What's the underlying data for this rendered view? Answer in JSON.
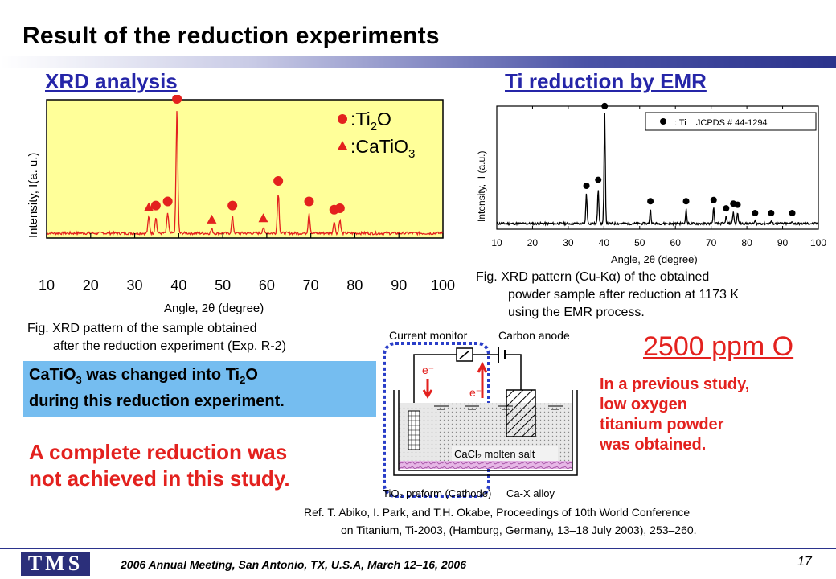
{
  "slide": {
    "title": "Result of the reduction experiments",
    "xrd_heading": "XRD analysis",
    "emr_heading": "Ti reduction by EMR",
    "left_caption_1": "Fig. XRD pattern of the sample obtained",
    "left_caption_2": "after the reduction experiment (Exp. R-2)",
    "blue_box_line_1_pre": "CaTiO",
    "blue_box_line_1_sub": "3",
    "blue_box_line_1_mid": " was changed into Ti",
    "blue_box_line_1_sub2": "2",
    "blue_box_line_1_post": "O",
    "blue_box_line_2": "during this reduction experiment.",
    "conclusion_line_1": "A complete reduction was",
    "conclusion_line_2": "not achieved in this study.",
    "right_caption_1": "Fig. XRD pattern (Cu-Kα) of the obtained",
    "right_caption_2": "powder sample after reduction at 1173 K",
    "right_caption_3": "using the EMR process.",
    "ppm_value": "2500 ppm O",
    "previous_study": [
      "In a previous study,",
      "low oxygen",
      "titanium powder",
      "was obtained."
    ],
    "ref_line_1": "Ref.  T. Abiko, I. Park, and T.H. Okabe, Proceedings of 10th World Conference",
    "ref_line_2": "on Titanium, Ti-2003, (Hamburg, Germany, 13–18 July 2003), 253–260.",
    "footer": "2006 Annual Meeting, San Antonio, TX, U.S.A, March 12–16, 2006",
    "page_number": "17",
    "logo_text": "TMS"
  },
  "diagram": {
    "current_monitor": "Current monitor",
    "carbon_anode": "Carbon anode",
    "electron_label": "e⁻",
    "molten_salt": "CaCl₂ molten salt",
    "cathode": "TiO₂ preform (Cathode)",
    "alloy": "Ca-X alloy"
  },
  "colors": {
    "plot_bg": "#ffff99",
    "marker_red": "#e3211e",
    "heading_blue": "#2525a8",
    "box_blue": "#75bdf0",
    "accent_red": "#e3211e",
    "dashed_frame": "#2a3ec8"
  },
  "chart_data": [
    {
      "type": "line",
      "title": "",
      "xlabel": "Angle, 2θ (degree)",
      "ylabel": "Intensity, I(a. u.)",
      "xlim": [
        10,
        100
      ],
      "xticks": [
        "10",
        "20",
        "30",
        "40",
        "50",
        "60",
        "70",
        "80",
        "90",
        "100"
      ],
      "grid": false,
      "legend_position": "top-right",
      "legend": [
        {
          "marker": "circle",
          "label_pre": ":Ti",
          "label_sub": "2",
          "label_post": "O"
        },
        {
          "marker": "triangle",
          "label_pre": ":CaTiO",
          "label_sub": "3",
          "label_post": ""
        }
      ],
      "peaks": [
        {
          "x": 33.2,
          "h": 0.12
        },
        {
          "x": 34.8,
          "h": 0.12
        },
        {
          "x": 37.5,
          "h": 0.15
        },
        {
          "x": 39.6,
          "h": 0.9
        },
        {
          "x": 47.5,
          "h": 0.03
        },
        {
          "x": 52.2,
          "h": 0.12
        },
        {
          "x": 59.2,
          "h": 0.04
        },
        {
          "x": 62.6,
          "h": 0.3
        },
        {
          "x": 69.6,
          "h": 0.15
        },
        {
          "x": 75.3,
          "h": 0.09
        },
        {
          "x": 76.6,
          "h": 0.1
        }
      ],
      "circle_markers": [
        34.8,
        37.5,
        39.6,
        52.2,
        62.6,
        69.6,
        75.3,
        76.6
      ],
      "triangle_markers": [
        33.2,
        47.5,
        59.2
      ]
    },
    {
      "type": "line",
      "title": "",
      "xlabel": "Angle, 2θ (degree)",
      "ylabel": "Intensity,  I (a.u.)",
      "xlim": [
        10,
        100
      ],
      "xticks": [
        "10",
        "20",
        "30",
        "40",
        "50",
        "60",
        "70",
        "80",
        "90",
        "100"
      ],
      "grid": false,
      "legend_position": "top-right",
      "legend": [
        {
          "marker": "circle",
          "label": ": Ti    JCPDS # 44-1294"
        }
      ],
      "peaks": [
        {
          "x": 35.1,
          "h": 0.25
        },
        {
          "x": 38.4,
          "h": 0.3
        },
        {
          "x": 40.2,
          "h": 0.92
        },
        {
          "x": 53.0,
          "h": 0.12
        },
        {
          "x": 63.0,
          "h": 0.12
        },
        {
          "x": 70.7,
          "h": 0.13
        },
        {
          "x": 74.2,
          "h": 0.06
        },
        {
          "x": 76.2,
          "h": 0.1
        },
        {
          "x": 77.4,
          "h": 0.09
        },
        {
          "x": 82.3,
          "h": 0.02
        },
        {
          "x": 86.8,
          "h": 0.02
        },
        {
          "x": 92.7,
          "h": 0.02
        }
      ],
      "circle_markers": [
        35.1,
        38.4,
        40.2,
        53.0,
        63.0,
        70.7,
        74.2,
        76.2,
        77.4,
        82.3,
        86.8,
        92.7
      ]
    }
  ]
}
